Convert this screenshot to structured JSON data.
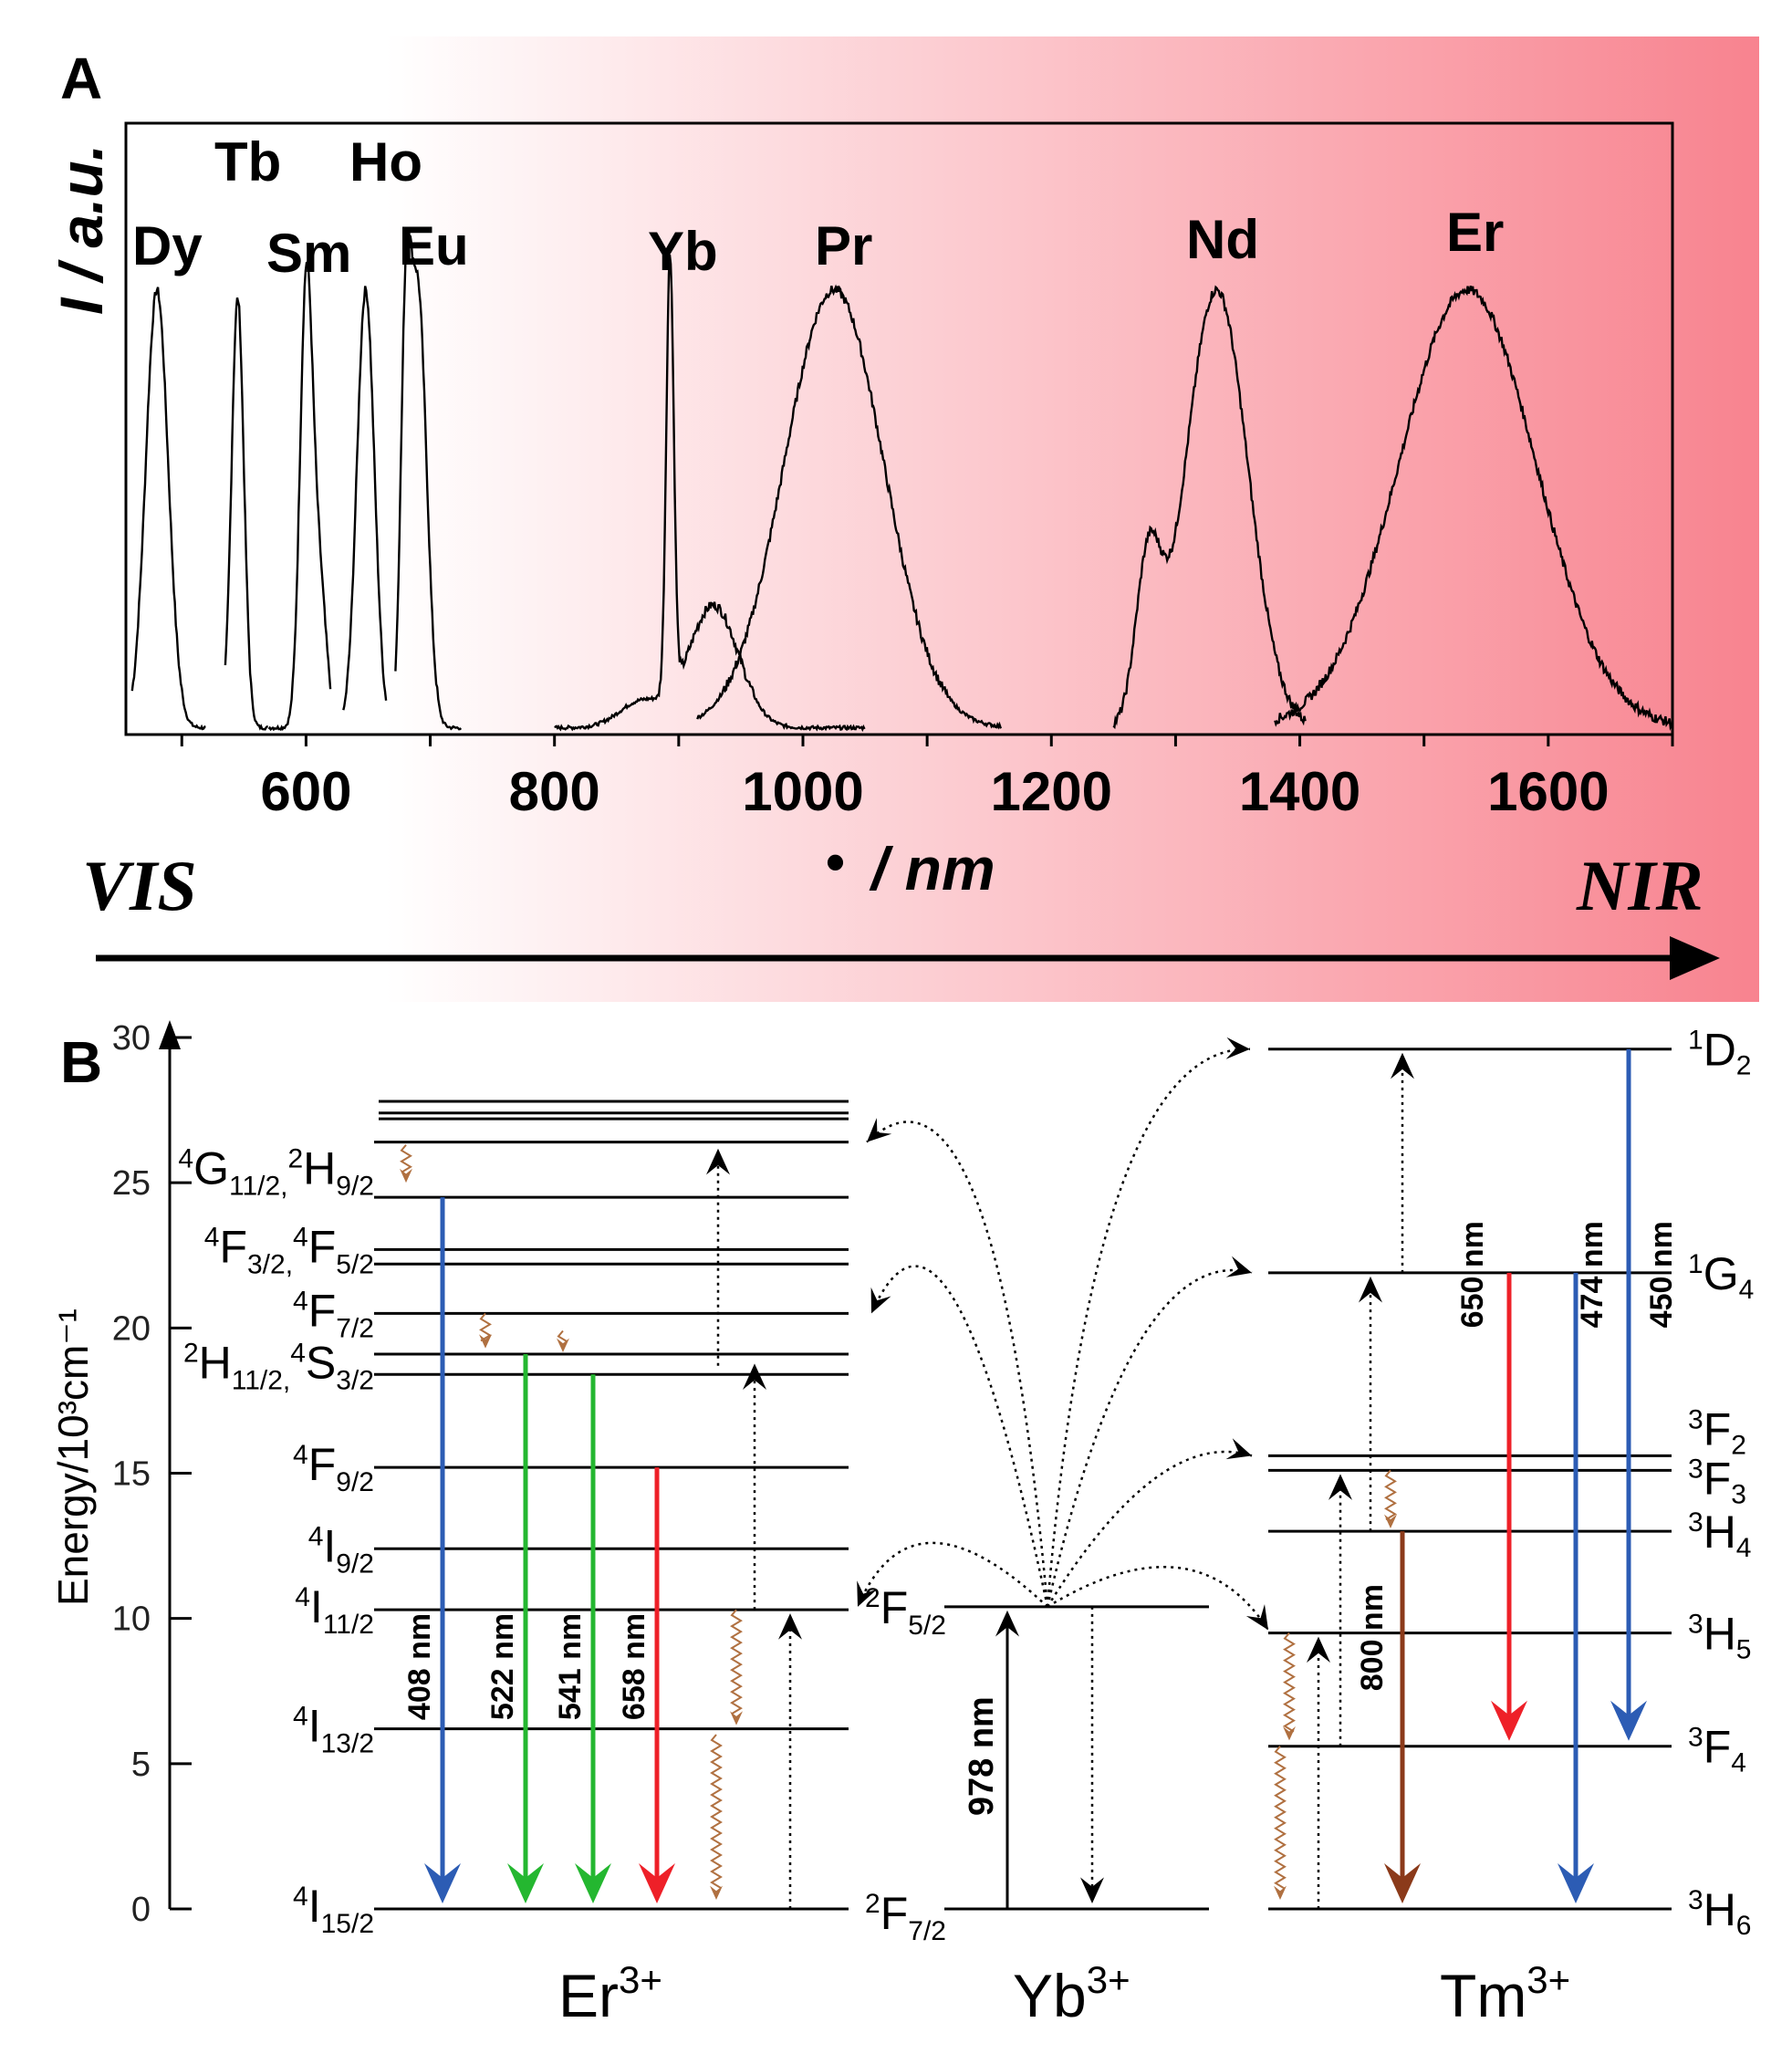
{
  "panel_a": {
    "label": "A",
    "y_axis_label": "I / a.u.",
    "x_axis_label": "/ nm",
    "x_axis_symbol": "•",
    "vis_label": "VIS",
    "nir_label": "NIR",
    "colors": {
      "gradient_start": "#ffffff",
      "gradient_end": "#f8838f",
      "line": "#000000"
    },
    "chart_data": {
      "type": "line",
      "title": "",
      "xlabel": "• / nm",
      "ylabel": "I / a.u.",
      "xlim": [
        455,
        1700
      ],
      "ylim": [
        0,
        1
      ],
      "xticks": [
        600,
        800,
        1000,
        1200,
        1400,
        1600
      ],
      "series": [
        {
          "name": "Dy",
          "peaks": [
            [
              480,
              1.0,
              9
            ]
          ],
          "range": [
            460,
            520
          ]
        },
        {
          "name": "Tb",
          "peaks": [
            [
              545,
              0.98,
              5
            ]
          ],
          "range": [
            535,
            570
          ]
        },
        {
          "name": "Sm",
          "peaks": [
            [
              600,
              0.97,
              5
            ],
            [
              610,
              0.35,
              6
            ]
          ],
          "range": [
            570,
            620
          ]
        },
        {
          "name": "Ho",
          "peaks": [
            [
              648,
              1.0,
              7
            ]
          ],
          "range": [
            630,
            665
          ]
        },
        {
          "name": "Eu",
          "peaks": [
            [
              690,
              1.0,
              7
            ],
            [
              680,
              0.7,
              4
            ]
          ],
          "range": [
            672,
            725
          ]
        },
        {
          "name": "Yb",
          "peaks": [
            [
              893,
              1.0,
              3
            ],
            [
              928,
              0.28,
              20
            ],
            [
              870,
              0.06,
              18
            ]
          ],
          "range": [
            800,
            1050
          ]
        },
        {
          "name": "Pr",
          "peaks": [
            [
              1025,
              1.0,
              40
            ]
          ],
          "range": [
            915,
            1160
          ]
        },
        {
          "name": "Nd",
          "peaks": [
            [
              1333,
              1.0,
              25
            ],
            [
              1278,
              0.35,
              10
            ]
          ],
          "range": [
            1250,
            1405
          ]
        },
        {
          "name": "Er",
          "peaks": [
            [
              1535,
              1.0,
              55
            ]
          ],
          "range": [
            1380,
            1700
          ]
        }
      ],
      "annotations": [
        {
          "text": "Dy"
        },
        {
          "text": "Tb"
        },
        {
          "text": "Sm"
        },
        {
          "text": "Ho"
        },
        {
          "text": "Eu"
        },
        {
          "text": "Yb"
        },
        {
          "text": "Pr"
        },
        {
          "text": "Nd"
        },
        {
          "text": "Er"
        }
      ]
    }
  },
  "panel_b": {
    "label": "B",
    "y_axis_label": "Energy/10³cm⁻¹",
    "energy_ticks": [
      "0",
      "5",
      "10",
      "15",
      "20",
      "25",
      "30"
    ],
    "energy_max": 30,
    "colors": {
      "blue": "#2c5cb4",
      "green": "#24b730",
      "red": "#ee2028",
      "brown": "#8b3a1a",
      "relax": "#b07040"
    },
    "ions": {
      "er": "Er",
      "er_charge": "3+",
      "yb": "Yb",
      "yb_charge": "3+",
      "tm": "Tm",
      "tm_charge": "3+"
    },
    "er_levels": [
      {
        "name": "4I15/2",
        "energy": 0
      },
      {
        "name": "4I13/2",
        "energy": 6.2
      },
      {
        "name": "4I11/2",
        "energy": 10.3
      },
      {
        "name": "4I9/2",
        "energy": 12.4
      },
      {
        "name": "4F9/2",
        "energy": 15.2
      },
      {
        "name": "4S3/2",
        "energy": 18.4
      },
      {
        "name": "2H11/2",
        "energy": 19.1
      },
      {
        "name": "4F7/2",
        "energy": 20.5
      },
      {
        "name": "4F5/2",
        "energy": 22.2
      },
      {
        "name": "4F3/2",
        "energy": 22.7
      },
      {
        "name": "2H9/2",
        "energy": 24.5
      },
      {
        "name": "4G11/2",
        "energy": 26.4
      },
      {
        "name": "upper-1",
        "energy": 27.2
      },
      {
        "name": "upper-2",
        "energy": 27.4
      },
      {
        "name": "upper-3",
        "energy": 27.8
      }
    ],
    "er_level_labels": [
      {
        "sup": "4",
        "main": "I",
        "sub": "15/2",
        "sup2": "",
        "main2": "",
        "sub2": ""
      },
      {
        "sup": "4",
        "main": "I",
        "sub": "13/2",
        "sup2": "",
        "main2": "",
        "sub2": ""
      },
      {
        "sup": "4",
        "main": "I",
        "sub": "11/2",
        "sup2": "",
        "main2": "",
        "sub2": ""
      },
      {
        "sup": "4",
        "main": "I",
        "sub": "9/2",
        "sup2": "",
        "main2": "",
        "sub2": ""
      },
      {
        "sup": "4",
        "main": "F",
        "sub": "9/2",
        "sup2": "",
        "main2": "",
        "sub2": ""
      },
      {
        "sup": "2",
        "main": "H",
        "sub": "11/2,",
        "sup2": "4",
        "main2": "S",
        "sub2": "3/2"
      },
      {
        "sup": "4",
        "main": "F",
        "sub": "7/2",
        "sup2": "",
        "main2": "",
        "sub2": ""
      },
      {
        "sup": "4",
        "main": "F",
        "sub": "3/2,",
        "sup2": "4",
        "main2": "F",
        "sub2": "5/2"
      },
      {
        "sup": "4",
        "main": "G",
        "sub": "11/2,",
        "sup2": "2",
        "main2": "H",
        "sub2": "9/2"
      }
    ],
    "yb_levels": [
      {
        "sup": "2",
        "main": "F",
        "sub": "7/2",
        "energy": 0
      },
      {
        "sup": "2",
        "main": "F",
        "sub": "5/2",
        "energy": 10.4
      }
    ],
    "tm_levels": [
      {
        "sup": "3",
        "main": "H",
        "sub": "6",
        "energy": 0
      },
      {
        "sup": "3",
        "main": "F",
        "sub": "4",
        "energy": 5.6
      },
      {
        "sup": "3",
        "main": "H",
        "sub": "5",
        "energy": 9.5
      },
      {
        "sup": "3",
        "main": "H",
        "sub": "4",
        "energy": 13.0
      },
      {
        "sup": "3",
        "main": "F",
        "sub": "3",
        "energy": 15.1
      },
      {
        "sup": "3",
        "main": "F",
        "sub": "2",
        "energy": 15.6
      },
      {
        "sup": "1",
        "main": "G",
        "sub": "4",
        "energy": 21.9
      },
      {
        "sup": "1",
        "main": "D",
        "sub": "2",
        "energy": 29.6
      }
    ],
    "er_emissions": [
      {
        "label": "408 nm",
        "from": 24.5,
        "to": 0,
        "color": "blue"
      },
      {
        "label": "522 nm",
        "from": 19.1,
        "to": 0,
        "color": "green"
      },
      {
        "label": "541 nm",
        "from": 18.4,
        "to": 0,
        "color": "green"
      },
      {
        "label": "658 nm",
        "from": 15.2,
        "to": 0,
        "color": "red"
      }
    ],
    "tm_emissions": [
      {
        "label": "800 nm",
        "from": 13.0,
        "to": 0,
        "color": "brown"
      },
      {
        "label": "650 nm",
        "from": 21.9,
        "to": 5.6,
        "color": "red"
      },
      {
        "label": "474 nm",
        "from": 21.9,
        "to": 0,
        "color": "blue"
      },
      {
        "label": "450 nm",
        "from": 29.6,
        "to": 5.6,
        "color": "blue"
      }
    ],
    "yb_absorption": {
      "label": "978 nm",
      "from": 0,
      "to": 10.4
    }
  }
}
